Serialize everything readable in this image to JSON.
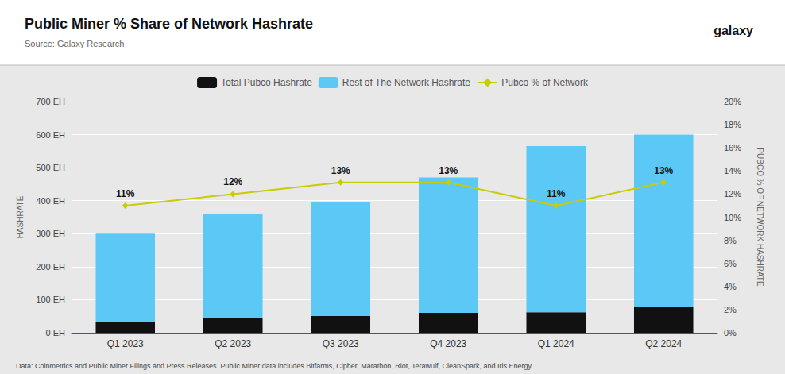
{
  "chart_data": {
    "type": "bar",
    "title": "Public Miner % Share of Network Hashrate",
    "subtitle": "Source: Galaxy Research",
    "annotations": [
      "galaxy",
      "Data: Coinmetrics and Public Miner Filings and Press Releases. Public Miner data includes Bitfarms, Cipher, Marathon, Riot, Terawulf, CleanSpark, and Iris Energy"
    ],
    "categories": [
      "Q1 2023",
      "Q2 2023",
      "Q3 2023",
      "Q4 2023",
      "Q1 2024",
      "Q2 2024"
    ],
    "stacked": true,
    "grid": true,
    "legend": "top",
    "ylabel": "HASHRATE",
    "y2label": "PUBCO % OF NETWORK HASHRATE",
    "ylim": [
      0,
      700
    ],
    "yticks": [
      {
        "value": 0,
        "label": "0 EH"
      },
      {
        "value": 100,
        "label": "100 EH"
      },
      {
        "value": 200,
        "label": "200 EH"
      },
      {
        "value": 300,
        "label": "300 EH"
      },
      {
        "value": 400,
        "label": "400 EH"
      },
      {
        "value": 500,
        "label": "500 EH"
      },
      {
        "value": 600,
        "label": "600 EH"
      },
      {
        "value": 700,
        "label": "700 EH"
      }
    ],
    "y2lim": [
      0,
      0.2
    ],
    "y2ticks": [
      {
        "value": 0,
        "label": "0%"
      },
      {
        "value": 0.02,
        "label": "2%"
      },
      {
        "value": 0.04,
        "label": "4%"
      },
      {
        "value": 0.06,
        "label": "6%"
      },
      {
        "value": 0.08,
        "label": "8%"
      },
      {
        "value": 0.1,
        "label": "10%"
      },
      {
        "value": 0.12,
        "label": "12%"
      },
      {
        "value": 0.14,
        "label": "14%"
      },
      {
        "value": 0.16,
        "label": "16%"
      },
      {
        "value": 0.18,
        "label": "18%"
      },
      {
        "value": 0.2,
        "label": "20%"
      }
    ],
    "series": [
      {
        "name": "Total Pubco Hashrate",
        "type": "bar",
        "color": "#111111",
        "values": [
          33,
          43,
          51,
          60,
          62,
          78
        ]
      },
      {
        "name": "Rest of The Network Hashrate",
        "type": "bar",
        "color": "#5BC8F5",
        "values": [
          267,
          317,
          344,
          410,
          503,
          522
        ]
      },
      {
        "name": "Pubco % of Network",
        "type": "line",
        "axis": "y2",
        "color": "#c8cc00",
        "marker": "diamond",
        "data_labels": true,
        "values": [
          0.11,
          0.12,
          0.13,
          0.13,
          0.11,
          0.13
        ],
        "value_labels": [
          "11%",
          "12%",
          "13%",
          "13%",
          "11%",
          "13%"
        ]
      }
    ]
  }
}
